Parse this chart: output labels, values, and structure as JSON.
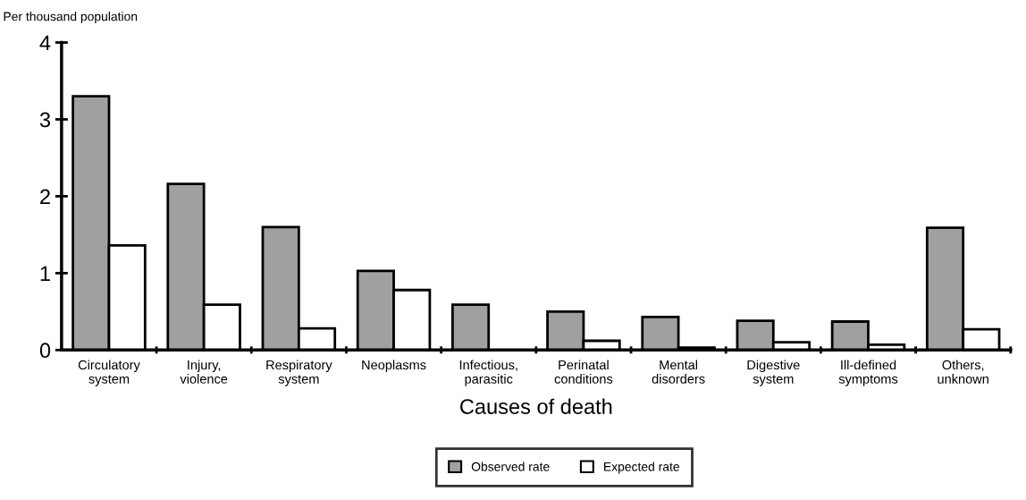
{
  "chart_data": {
    "type": "bar",
    "ylabel": "Per thousand population",
    "xlabel": "Causes of death",
    "categories": [
      "Circulatory\nsystem",
      "Injury,\nviolence",
      "Respiratory\nsystem",
      "Neoplasms",
      "Infectious,\nparasitic",
      "Perinatal\nconditions",
      "Mental\ndisorders",
      "Digestive\nsystem",
      "Ill-defined\nsymptoms",
      "Others,\nunknown"
    ],
    "series": [
      {
        "name": "Observed rate",
        "color": "#a0a0a0",
        "values": [
          3.3,
          2.16,
          1.6,
          1.03,
          0.59,
          0.5,
          0.43,
          0.38,
          0.37,
          1.59
        ]
      },
      {
        "name": "Expected rate",
        "color": "#ffffff",
        "values": [
          1.36,
          0.59,
          0.28,
          0.78,
          0.0,
          0.12,
          0.03,
          0.1,
          0.07,
          0.27
        ]
      }
    ],
    "ylim": [
      0,
      4
    ],
    "yticks": [
      0,
      1,
      2,
      3,
      4
    ],
    "grid": false,
    "legend": "bottom"
  }
}
